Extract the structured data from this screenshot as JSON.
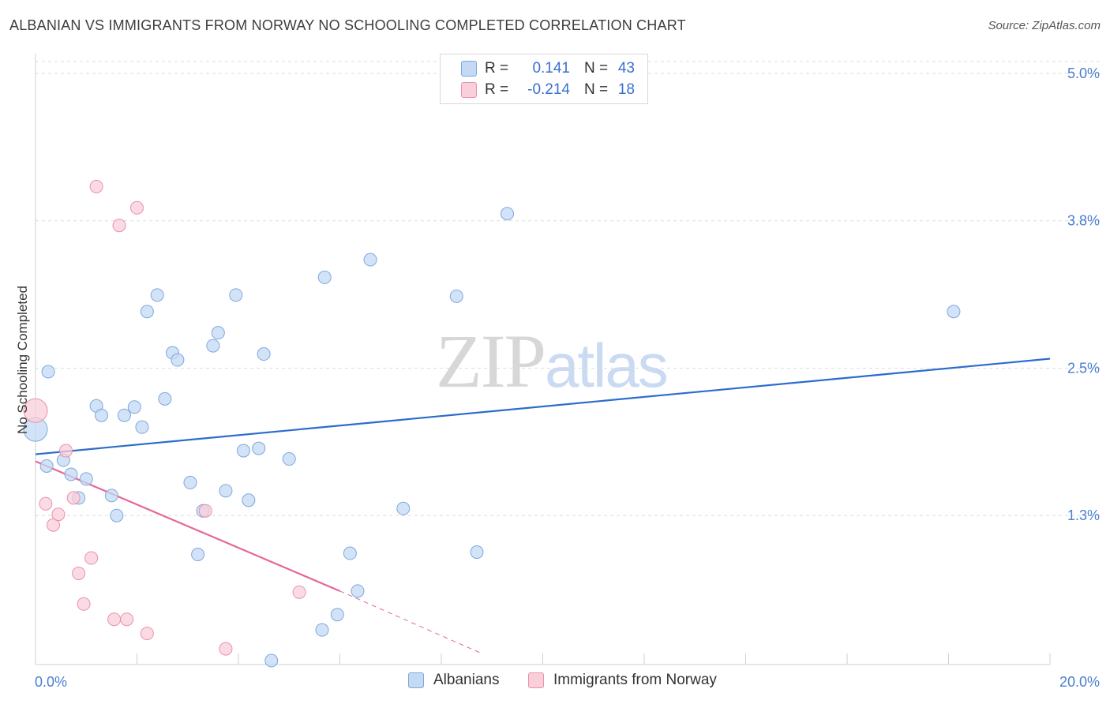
{
  "header": {
    "title": "ALBANIAN VS IMMIGRANTS FROM NORWAY NO SCHOOLING COMPLETED CORRELATION CHART",
    "source": "Source: ZipAtlas.com"
  },
  "watermark": {
    "zip": "ZIP",
    "atlas": "atlas"
  },
  "legend_top": {
    "rows": [
      {
        "r_label": "R =",
        "r_value": "0.141",
        "n_label": "N =",
        "n_value": "43",
        "color": "#a9c8f2"
      },
      {
        "r_label": "R =",
        "r_value": "-0.214",
        "n_label": "N =",
        "n_value": "18",
        "color": "#f7b8c8"
      }
    ]
  },
  "legend_bottom": {
    "albanians": "Albanians",
    "norway": "Immigrants from Norway"
  },
  "colors": {
    "blue_fill": "#c4d9f4",
    "blue_stroke": "#7ea7dd",
    "blue_line": "#2c6ccc",
    "pink_fill": "#f9cfda",
    "pink_stroke": "#ea90aa",
    "pink_line": "#e4679a",
    "tick": "#4a7fd0",
    "grid": "#dddddd"
  },
  "chart_data": {
    "type": "scatter",
    "title": "ALBANIAN VS IMMIGRANTS FROM NORWAY NO SCHOOLING COMPLETED CORRELATION CHART",
    "xlabel": "",
    "ylabel": "No Schooling Completed",
    "xlim": [
      0,
      20
    ],
    "ylim": [
      0,
      5.1
    ],
    "x_tick_labels": [
      "0.0%",
      "20.0%"
    ],
    "y_ticks": [
      1.25,
      2.5,
      3.75,
      5.0
    ],
    "y_tick_labels": [
      "1.3%",
      "2.5%",
      "3.8%",
      "5.0%"
    ],
    "grid": "dashed horizontal",
    "legend_position": "top-center",
    "series": [
      {
        "name": "Albanians",
        "r": 0.141,
        "n": 43,
        "trend": {
          "x": [
            0,
            20
          ],
          "y": [
            1.77,
            2.58
          ]
        },
        "points": [
          {
            "x": 0.0,
            "y": 1.98,
            "big": true
          },
          {
            "x": 0.25,
            "y": 2.47
          },
          {
            "x": 0.22,
            "y": 1.67
          },
          {
            "x": 0.55,
            "y": 1.72
          },
          {
            "x": 0.7,
            "y": 1.6
          },
          {
            "x": 0.85,
            "y": 1.4
          },
          {
            "x": 1.0,
            "y": 1.56
          },
          {
            "x": 1.2,
            "y": 2.18
          },
          {
            "x": 1.3,
            "y": 2.1
          },
          {
            "x": 1.5,
            "y": 1.42
          },
          {
            "x": 1.6,
            "y": 1.25
          },
          {
            "x": 1.75,
            "y": 2.1
          },
          {
            "x": 1.95,
            "y": 2.17
          },
          {
            "x": 2.1,
            "y": 2.0
          },
          {
            "x": 2.2,
            "y": 2.98
          },
          {
            "x": 2.4,
            "y": 3.12
          },
          {
            "x": 2.55,
            "y": 2.24
          },
          {
            "x": 2.7,
            "y": 2.63
          },
          {
            "x": 2.8,
            "y": 2.57
          },
          {
            "x": 3.05,
            "y": 1.53
          },
          {
            "x": 3.2,
            "y": 0.92
          },
          {
            "x": 3.3,
            "y": 1.29
          },
          {
            "x": 3.5,
            "y": 2.69
          },
          {
            "x": 3.6,
            "y": 2.8
          },
          {
            "x": 3.75,
            "y": 1.46
          },
          {
            "x": 3.95,
            "y": 3.12
          },
          {
            "x": 4.1,
            "y": 1.8
          },
          {
            "x": 4.2,
            "y": 1.38
          },
          {
            "x": 4.4,
            "y": 1.82
          },
          {
            "x": 4.5,
            "y": 2.62
          },
          {
            "x": 4.65,
            "y": 0.02
          },
          {
            "x": 5.0,
            "y": 1.73
          },
          {
            "x": 5.65,
            "y": 0.28
          },
          {
            "x": 5.7,
            "y": 3.27
          },
          {
            "x": 5.95,
            "y": 0.41
          },
          {
            "x": 6.2,
            "y": 0.93
          },
          {
            "x": 6.35,
            "y": 0.61
          },
          {
            "x": 6.6,
            "y": 3.42
          },
          {
            "x": 7.25,
            "y": 1.31
          },
          {
            "x": 8.3,
            "y": 3.11
          },
          {
            "x": 8.7,
            "y": 0.94
          },
          {
            "x": 9.3,
            "y": 3.81
          },
          {
            "x": 18.1,
            "y": 2.98
          }
        ]
      },
      {
        "name": "Immigrants from Norway",
        "r": -0.214,
        "n": 18,
        "trend": {
          "x": [
            0,
            6.0
          ],
          "y": [
            1.71,
            0.61
          ]
        },
        "trend_dashed": {
          "x": [
            6.0,
            8.8
          ],
          "y": [
            0.61,
            0.08
          ]
        },
        "points": [
          {
            "x": 0.0,
            "y": 2.14,
            "big": true
          },
          {
            "x": 0.2,
            "y": 1.35
          },
          {
            "x": 0.35,
            "y": 1.17
          },
          {
            "x": 0.45,
            "y": 1.26
          },
          {
            "x": 0.6,
            "y": 1.8
          },
          {
            "x": 0.75,
            "y": 1.4
          },
          {
            "x": 0.85,
            "y": 0.76
          },
          {
            "x": 0.95,
            "y": 0.5
          },
          {
            "x": 1.1,
            "y": 0.89
          },
          {
            "x": 1.2,
            "y": 4.04
          },
          {
            "x": 1.55,
            "y": 0.37
          },
          {
            "x": 1.8,
            "y": 0.37
          },
          {
            "x": 1.65,
            "y": 3.71
          },
          {
            "x": 2.0,
            "y": 3.86
          },
          {
            "x": 2.2,
            "y": 0.25
          },
          {
            "x": 3.35,
            "y": 1.29
          },
          {
            "x": 3.75,
            "y": 0.12
          },
          {
            "x": 5.2,
            "y": 0.6
          }
        ]
      }
    ]
  }
}
